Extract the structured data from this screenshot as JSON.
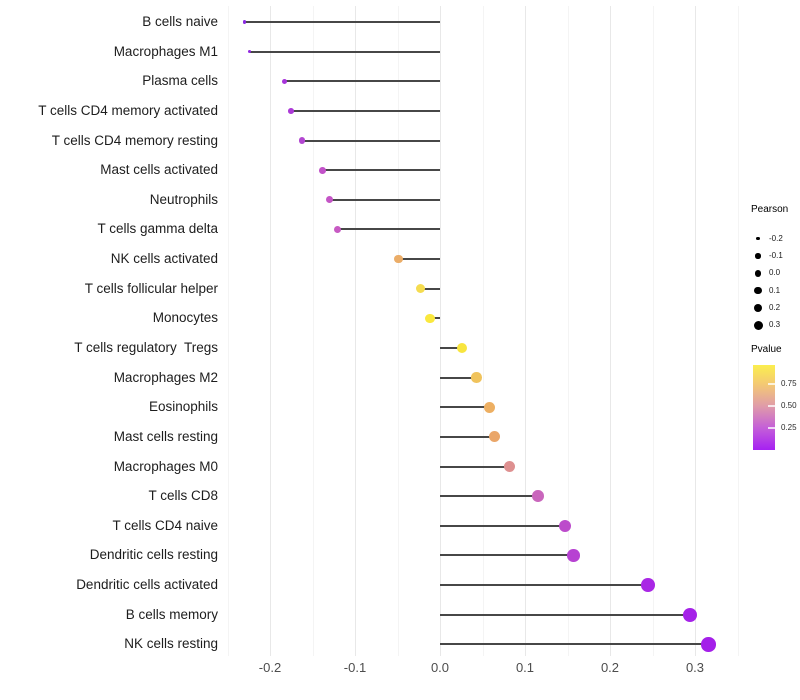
{
  "chart_data": {
    "type": "scatter",
    "subtype": "lollipop",
    "title": "",
    "xlabel": "",
    "ylabel": "",
    "grid": true,
    "legend_position": "right",
    "x_axis": {
      "ticks": [
        -0.2,
        -0.1,
        0.0,
        0.1,
        0.2,
        0.3
      ],
      "tick_labels": [
        "-0.2",
        "-0.1",
        "0.0",
        "0.1",
        "0.2",
        "0.3"
      ],
      "range": [
        -0.255,
        0.355
      ]
    },
    "rows": [
      {
        "label": "B cells naive",
        "pearson": -0.23,
        "pvalue": 0.03,
        "color": "#8A2BE1",
        "size": 3.5
      },
      {
        "label": "Macrophages M1",
        "pearson": -0.224,
        "pvalue": 0.05,
        "color": "#9128E0",
        "size": 3.7
      },
      {
        "label": "Plasma cells",
        "pearson": -0.183,
        "pvalue": 0.13,
        "color": "#A734DB",
        "size": 5.4
      },
      {
        "label": "T cells CD4 memory activated",
        "pearson": -0.175,
        "pvalue": 0.15,
        "color": "#AC3AD7",
        "size": 5.6
      },
      {
        "label": "T cells CD4 memory resting",
        "pearson": -0.162,
        "pvalue": 0.18,
        "color": "#B246D1",
        "size": 6.1
      },
      {
        "label": "Mast cells activated",
        "pearson": -0.138,
        "pvalue": 0.25,
        "color": "#C252C9",
        "size": 6.7
      },
      {
        "label": "Neutrophils",
        "pearson": -0.13,
        "pvalue": 0.26,
        "color": "#C455C6",
        "size": 7.0
      },
      {
        "label": "T cells gamma delta",
        "pearson": -0.121,
        "pvalue": 0.28,
        "color": "#C75AC3",
        "size": 7.2
      },
      {
        "label": "NK cells activated",
        "pearson": -0.049,
        "pvalue": 0.62,
        "color": "#EBAD68",
        "size": 8.8
      },
      {
        "label": "T cells follicular helper",
        "pearson": -0.023,
        "pvalue": 0.78,
        "color": "#F5DC50",
        "size": 9.3
      },
      {
        "label": "Monocytes",
        "pearson": -0.012,
        "pvalue": 0.85,
        "color": "#FAE83E",
        "size": 9.6
      },
      {
        "label": "T cells regulatory  Tregs",
        "pearson": 0.026,
        "pvalue": 0.83,
        "color": "#F8E53F",
        "size": 10.3
      },
      {
        "label": "Macrophages M2",
        "pearson": 0.043,
        "pvalue": 0.7,
        "color": "#F0C35C",
        "size": 10.6
      },
      {
        "label": "Eosinophils",
        "pearson": 0.058,
        "pvalue": 0.62,
        "color": "#EDAF62",
        "size": 10.9
      },
      {
        "label": "Mast cells resting",
        "pearson": 0.064,
        "pvalue": 0.58,
        "color": "#EAA669",
        "size": 11.0
      },
      {
        "label": "Macrophages M0",
        "pearson": 0.082,
        "pvalue": 0.45,
        "color": "#DE9090",
        "size": 11.2
      },
      {
        "label": "T cells CD8",
        "pearson": 0.115,
        "pvalue": 0.3,
        "color": "#C966BC",
        "size": 11.8
      },
      {
        "label": "T cells CD4 naive",
        "pearson": 0.147,
        "pvalue": 0.22,
        "color": "#BC4BCB",
        "size": 12.3
      },
      {
        "label": "Dendritic cells resting",
        "pearson": 0.157,
        "pvalue": 0.2,
        "color": "#B742D2",
        "size": 12.4
      },
      {
        "label": "Dendritic cells activated",
        "pearson": 0.245,
        "pvalue": 0.06,
        "color": "#A927E5",
        "size": 13.7
      },
      {
        "label": "B cells memory",
        "pearson": 0.294,
        "pvalue": 0.03,
        "color": "#A522E8",
        "size": 14.3
      },
      {
        "label": "NK cells resting",
        "pearson": 0.316,
        "pvalue": 0.02,
        "color": "#A41FE9",
        "size": 14.6
      }
    ],
    "legend_size": {
      "title": "Pearson",
      "breaks": [
        "-0.2",
        "-0.1",
        "0.0",
        "0.1",
        "0.2",
        "0.3"
      ],
      "dot_diameters": [
        3.3,
        5.3,
        6.7,
        7.7,
        8.3,
        9.0
      ]
    },
    "legend_color": {
      "title": "Pvalue",
      "tick_labels": [
        "0.75",
        "0.50",
        "0.25"
      ],
      "gradient_stops": [
        {
          "pos": 0,
          "color": "#FBEE4E"
        },
        {
          "pos": 22,
          "color": "#F4CA72"
        },
        {
          "pos": 48,
          "color": "#E09CA8"
        },
        {
          "pos": 74,
          "color": "#C45FD8"
        },
        {
          "pos": 100,
          "color": "#A621F2"
        }
      ]
    }
  }
}
